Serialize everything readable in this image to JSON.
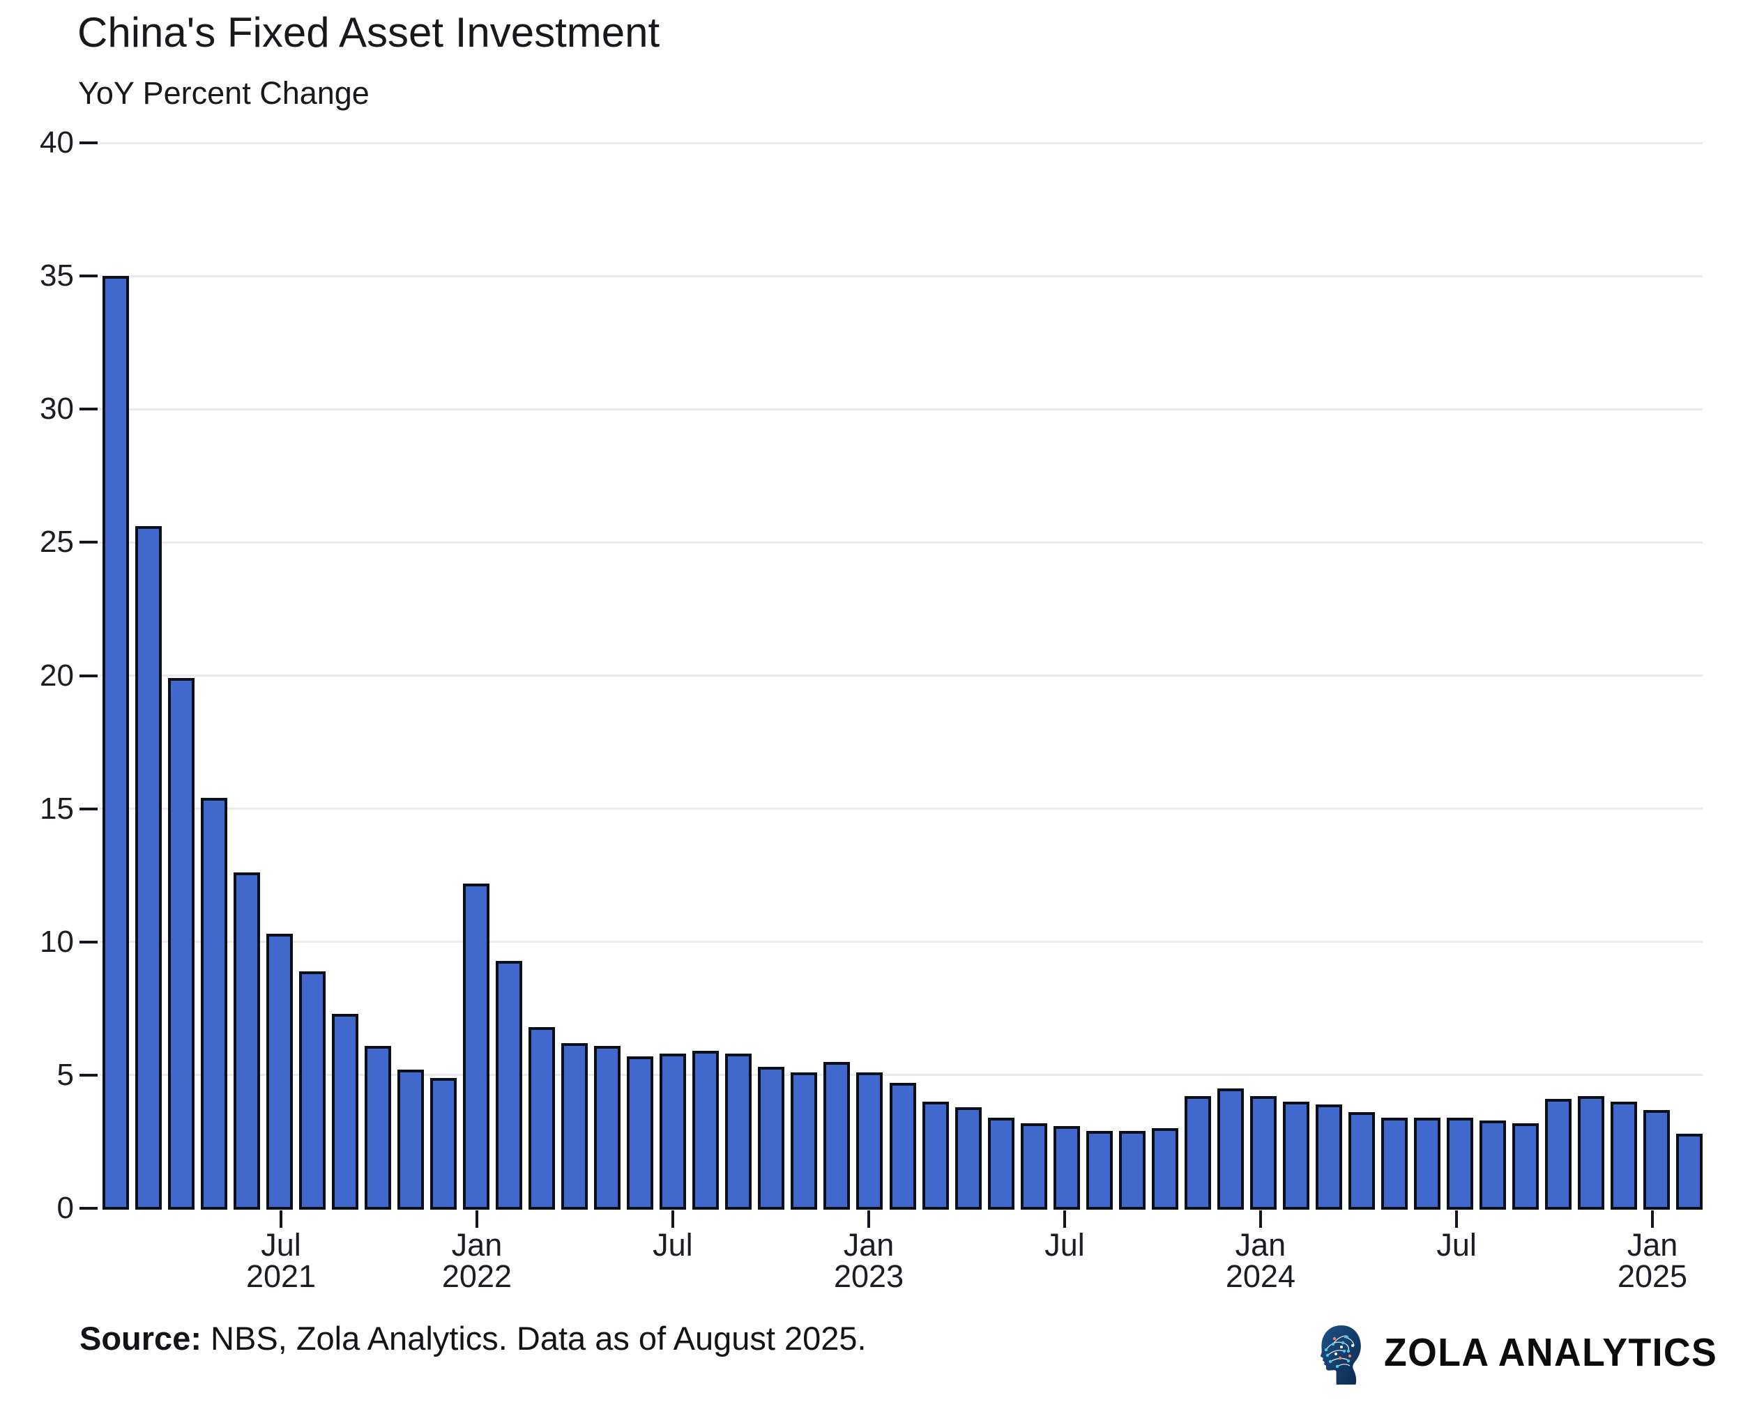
{
  "header": {
    "title": "China's Fixed Asset Investment",
    "subtitle": "YoY Percent Change"
  },
  "axes": {
    "y": {
      "tick_values": [
        0,
        5,
        10,
        15,
        20,
        25,
        30,
        35,
        40
      ],
      "min": 0,
      "max": 40
    },
    "x": {
      "ticks": [
        {
          "pos": 0.1131,
          "line1": "Jul",
          "line2": "2021"
        },
        {
          "pos": 0.2353,
          "line1": "Jan",
          "line2": "2022"
        },
        {
          "pos": 0.3575,
          "line1": "Jul",
          "line2": ""
        },
        {
          "pos": 0.4798,
          "line1": "Jan",
          "line2": "2023"
        },
        {
          "pos": 0.602,
          "line1": "Jul",
          "line2": ""
        },
        {
          "pos": 0.7242,
          "line1": "Jan",
          "line2": "2024"
        },
        {
          "pos": 0.8465,
          "line1": "Jul",
          "line2": ""
        },
        {
          "pos": 0.9687,
          "line1": "Jan",
          "line2": "2025"
        }
      ]
    }
  },
  "chart_data": {
    "type": "bar",
    "title": "China's Fixed Asset Investment",
    "subtitle": "YoY Percent Change",
    "ylabel": "YoY Percent Change",
    "ylim": [
      0,
      40
    ],
    "grid": true,
    "legend": "none",
    "categories": [
      "Jan-Feb 2021",
      "Mar 2021",
      "Apr 2021",
      "May 2021",
      "Jun 2021",
      "Jul 2021",
      "Aug 2021",
      "Sep 2021",
      "Oct 2021",
      "Nov 2021",
      "Dec 2021",
      "Jan-Feb 2022",
      "Mar 2022",
      "Apr 2022",
      "May 2022",
      "Jun 2022",
      "Jul 2022",
      "Aug 2022",
      "Sep 2022",
      "Oct 2022",
      "Nov 2022",
      "Dec 2022",
      "Jan-Feb 2023",
      "Mar 2023",
      "Apr 2023",
      "May 2023",
      "Jun 2023",
      "Jul 2023",
      "Aug 2023",
      "Sep 2023",
      "Oct 2023",
      "Nov 2023",
      "Dec 2023",
      "Jan-Feb 2024",
      "Mar 2024",
      "Apr 2024",
      "May 2024",
      "Jun 2024",
      "Jul 2024",
      "Aug 2024",
      "Sep 2024",
      "Oct 2024",
      "Nov 2024",
      "Dec 2024",
      "Jan-Feb 2025",
      "Mar 2025",
      "Apr 2025",
      "May 2025",
      "Jun 2025"
    ],
    "values": [
      35.0,
      25.6,
      19.9,
      15.4,
      12.6,
      10.3,
      8.9,
      7.3,
      6.1,
      5.2,
      4.9,
      12.2,
      9.3,
      6.8,
      6.2,
      6.1,
      5.7,
      5.8,
      5.9,
      5.8,
      5.3,
      5.1,
      5.5,
      5.1,
      4.7,
      4.0,
      3.8,
      3.4,
      3.2,
      3.1,
      2.9,
      2.9,
      3.0,
      4.2,
      4.5,
      4.2,
      4.0,
      3.9,
      3.6,
      3.4,
      3.4,
      3.4,
      3.3,
      3.2,
      4.1,
      4.2,
      4.0,
      3.7,
      2.8
    ]
  },
  "colors": {
    "bar_fill": "#4169cd",
    "bar_edge": "#0b0f17",
    "gridline": "#e8eaec",
    "axis": "#10151e",
    "text": "#17191d"
  },
  "footer": {
    "source_label": "Source:",
    "source_text": " NBS, Zola Analytics. Data as of August 2025.",
    "brand": "ZOLA ANALYTICS"
  }
}
